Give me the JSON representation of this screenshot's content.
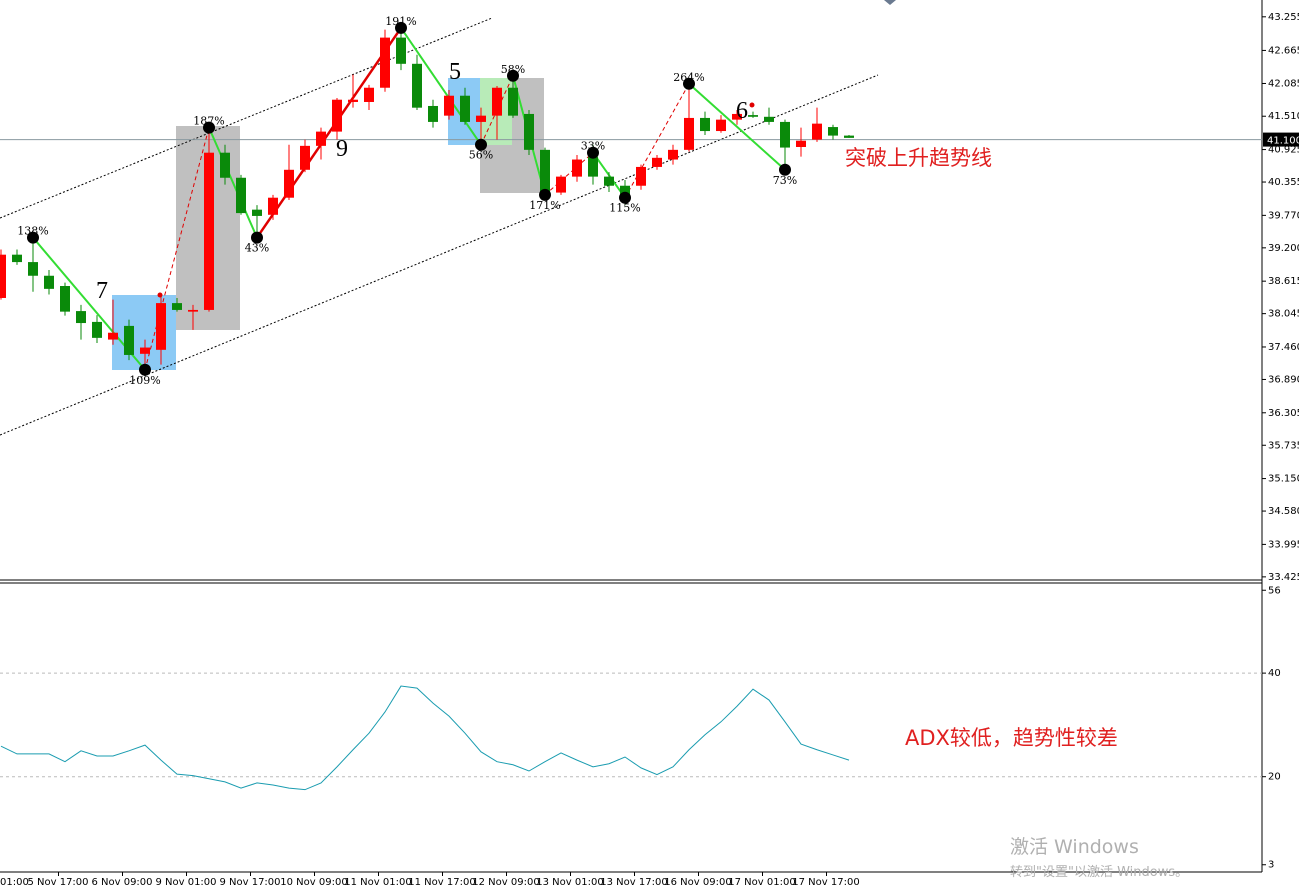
{
  "chart_data": [
    {
      "type": "candlestick",
      "x_tick_labels": [
        "01:00",
        "5 Nov 17:00",
        "6 Nov 09:00",
        "9 Nov 01:00",
        "9 Nov 17:00",
        "10 Nov 09:00",
        "11 Nov 01:00",
        "11 Nov 17:00",
        "12 Nov 09:00",
        "13 Nov 01:00",
        "13 Nov 17:00",
        "16 Nov 09:00",
        "17 Nov 01:00",
        "17 Nov 17:00"
      ],
      "open": [
        38.32,
        39.08,
        38.95,
        38.71,
        38.53,
        38.09,
        37.9,
        37.59,
        37.83,
        37.34,
        37.41,
        38.23,
        38.08,
        38.11,
        40.87,
        40.43,
        39.87,
        39.78,
        40.08,
        40.57,
        40.99,
        41.24,
        41.76,
        41.76,
        42.01,
        42.89,
        42.43,
        41.69,
        41.52,
        41.87,
        41.41,
        41.52,
        42.01,
        41.55,
        40.92,
        40.17,
        40.45,
        40.8,
        40.45,
        40.29,
        40.29,
        40.62,
        40.75,
        40.92,
        41.48,
        41.25,
        41.45,
        41.53,
        41.5,
        41.41,
        40.97,
        41.1,
        41.32,
        41.17
      ],
      "high": [
        39.17,
        39.17,
        39.38,
        38.81,
        38.59,
        38.2,
        38.02,
        38.29,
        37.94,
        37.59,
        38.38,
        38.32,
        38.2,
        41.31,
        41.01,
        40.48,
        39.95,
        40.13,
        41.01,
        41.1,
        41.31,
        41.83,
        42.24,
        42.06,
        43.03,
        43.06,
        42.59,
        41.8,
        41.97,
        42.01,
        41.66,
        42.04,
        42.24,
        41.62,
        40.96,
        40.48,
        40.83,
        41.01,
        40.53,
        40.39,
        40.66,
        40.83,
        41.01,
        42.08,
        41.59,
        41.53,
        41.62,
        41.59,
        41.66,
        41.45,
        41.31,
        41.66,
        41.36,
        41.18
      ],
      "low": [
        38.29,
        38.9,
        38.43,
        38.38,
        38.01,
        37.59,
        37.53,
        37.5,
        37.23,
        37.06,
        37.15,
        38.08,
        37.76,
        38.08,
        40.31,
        39.78,
        39.38,
        39.69,
        40.04,
        40.53,
        40.75,
        41.1,
        41.66,
        41.62,
        41.94,
        42.32,
        41.62,
        41.31,
        41.45,
        41.36,
        40.96,
        41.1,
        41.48,
        40.83,
        40.08,
        40.13,
        40.36,
        40.31,
        40.18,
        39.95,
        40.22,
        40.57,
        40.66,
        40.89,
        41.18,
        41.22,
        41.36,
        41.48,
        41.36,
        40.66,
        40.8,
        41.06,
        41.1,
        41.13
      ],
      "close": [
        39.08,
        38.95,
        38.71,
        38.48,
        38.08,
        37.88,
        37.62,
        37.71,
        37.32,
        37.45,
        38.23,
        38.11,
        38.11,
        40.87,
        40.43,
        39.81,
        39.76,
        40.08,
        40.57,
        40.99,
        41.24,
        41.8,
        41.8,
        42.01,
        42.89,
        42.43,
        41.66,
        41.41,
        41.87,
        41.41,
        41.52,
        42.01,
        41.52,
        40.92,
        40.13,
        40.45,
        40.75,
        40.45,
        40.29,
        40.1,
        40.62,
        40.78,
        40.92,
        41.48,
        41.25,
        41.45,
        41.55,
        41.5,
        41.41,
        40.96,
        41.08,
        41.38,
        41.17,
        41.13
      ],
      "up_color": "#ff0000",
      "down_color": "#0a8a0a",
      "ylim": [
        33.37,
        43.55
      ],
      "yticks": [
        43.255,
        42.665,
        42.085,
        {
          "value": 41.51,
          "label": "41.510"
        },
        40.925,
        40.355,
        {
          "value": 39.77,
          "label": "39.770"
        },
        {
          "value": 39.2,
          "label": "39.200"
        },
        38.615,
        38.045,
        {
          "value": 37.46,
          "label": "37.460"
        },
        {
          "value": 36.89,
          "label": "36.890"
        },
        36.305,
        35.735,
        {
          "value": 35.15,
          "label": "35.150"
        },
        {
          "value": 34.58,
          "label": "34.580"
        },
        33.995,
        33.425
      ],
      "current_price": {
        "value": 41.1,
        "label": "41.100"
      },
      "zigzag": {
        "labels": [
          "138%",
          "109%",
          "187%",
          "43%",
          "191%",
          "56%",
          "58%",
          "171%",
          "33%",
          "115%",
          "264%",
          "73%"
        ],
        "values": [
          39.38,
          37.06,
          41.31,
          39.38,
          43.06,
          41.01,
          42.22,
          40.13,
          40.87,
          40.08,
          42.08,
          40.57
        ]
      },
      "wave_labels": [
        "7",
        "9",
        "5",
        "6"
      ],
      "annotation": "突破上升趋势线"
    },
    {
      "type": "line",
      "values": [
        25.9,
        24.4,
        24.4,
        24.4,
        22.9,
        25.0,
        24.0,
        24.0,
        25.0,
        26.1,
        23.2,
        20.5,
        20.2,
        19.6,
        19.0,
        17.8,
        18.8,
        18.4,
        17.8,
        17.5,
        18.8,
        21.9,
        25.2,
        28.4,
        32.5,
        37.5,
        37.1,
        34.2,
        31.7,
        28.4,
        24.8,
        22.9,
        22.3,
        21.1,
        22.9,
        24.6,
        23.2,
        21.9,
        22.5,
        23.8,
        21.7,
        20.4,
        21.9,
        25.2,
        28.1,
        30.6,
        33.6,
        36.9,
        34.8,
        30.6,
        26.3,
        25.2,
        24.2,
        23.2
      ],
      "color": "#1a9cb0",
      "ylim": [
        1.6,
        57.4
      ],
      "yticks": [
        56,
        40,
        20,
        3
      ],
      "annotation": "ADX较低，趋势性较差"
    }
  ],
  "watermark": [
    "激活 Windows",
    "转到\"设置\"以激活 Windows。"
  ]
}
